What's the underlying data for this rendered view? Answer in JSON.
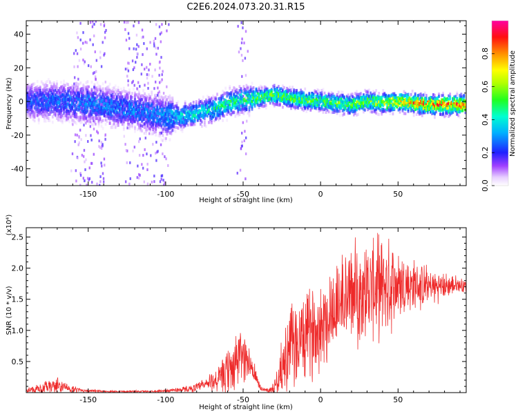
{
  "title": "C2E6.2024.073.20.31.R15",
  "colors": {
    "snr_line": "#ee2a2a",
    "frame": "#000000",
    "background": "#ffffff"
  },
  "chart_data": [
    {
      "type": "heatmap",
      "name": "spectrogram",
      "xlabel": "Height of straight line (km)",
      "ylabel": "Frequency (Hz)",
      "xlim": [
        -190,
        94
      ],
      "ylim": [
        -50,
        48
      ],
      "xticks": [
        -150,
        -100,
        -50,
        0,
        50
      ],
      "yticks": [
        -40,
        -20,
        0,
        20,
        40
      ],
      "xtick_labels": [
        "-150",
        "-100",
        "-50",
        "0",
        "50"
      ],
      "ytick_labels": [
        "-40",
        "-20",
        "0",
        "20",
        "40"
      ],
      "colorbar": {
        "label": "Normalized spectral amplitude",
        "range": [
          0.0,
          1.0
        ],
        "ticks": [
          0.0,
          0.2,
          0.4,
          0.6,
          0.8
        ],
        "tick_labels": [
          "0.0",
          "0.2",
          "0.4",
          "0.6",
          "0.8"
        ],
        "colormap": "rainbow (white-purple-blue-cyan-green-yellow-red-magenta)"
      },
      "ridge_frequency": {
        "x": [
          -190,
          -170,
          -150,
          -130,
          -115,
          -100,
          -90,
          -80,
          -70,
          -60,
          -50,
          -40,
          -30,
          -20,
          -10,
          0,
          10,
          20,
          30,
          40,
          50,
          60,
          70,
          80,
          94
        ],
        "y": [
          0,
          0,
          -1,
          -4,
          -6,
          -9,
          -9,
          -7,
          -5,
          -1,
          1,
          2,
          4,
          2,
          1,
          0,
          -1,
          -2,
          0,
          -1,
          0,
          -1,
          -2,
          -2,
          -2
        ]
      },
      "peak_amplitude": {
        "x": [
          -190,
          -150,
          -110,
          -90,
          -70,
          -50,
          -30,
          0,
          30,
          60,
          94
        ],
        "y": [
          0.25,
          0.3,
          0.3,
          0.4,
          0.45,
          0.5,
          0.55,
          0.55,
          0.6,
          0.8,
          0.85
        ]
      },
      "grid": false
    },
    {
      "type": "line",
      "name": "snr",
      "xlabel": "Height of straight line (km)",
      "ylabel": "SNR (10 * v/v)",
      "y_multiplier": "(x10⁴)",
      "xlim": [
        -190,
        94
      ],
      "ylim": [
        0,
        2.65
      ],
      "xticks": [
        -150,
        -100,
        -50,
        0,
        50
      ],
      "yticks": [
        0.5,
        1.0,
        1.5,
        2.0,
        2.5
      ],
      "xtick_labels": [
        "-150",
        "-100",
        "-50",
        "0",
        "50"
      ],
      "ytick_labels": [
        "0.5",
        "1.0",
        "1.5",
        "2.0",
        "2.5"
      ],
      "series": [
        {
          "color": "#ee2a2a",
          "x": [
            -190,
            -180,
            -175,
            -170,
            -165,
            -160,
            -150,
            -140,
            -130,
            -120,
            -110,
            -100,
            -95,
            -90,
            -85,
            -80,
            -75,
            -70,
            -65,
            -60,
            -57,
            -55,
            -53,
            -50,
            -48,
            -45,
            -42,
            -40,
            -38,
            -35,
            -32,
            -30,
            -28,
            -25,
            -22,
            -20,
            -17,
            -15,
            -12,
            -10,
            -7,
            -5,
            -2,
            0,
            3,
            5,
            8,
            10,
            12,
            15,
            18,
            20,
            22,
            25,
            28,
            30,
            33,
            35,
            38,
            40,
            42,
            45,
            48,
            50,
            55,
            60,
            65,
            70,
            75,
            80,
            85,
            90,
            94
          ],
          "mean": [
            0.04,
            0.06,
            0.09,
            0.12,
            0.08,
            0.05,
            0.03,
            0.02,
            0.02,
            0.02,
            0.02,
            0.03,
            0.04,
            0.05,
            0.06,
            0.08,
            0.12,
            0.18,
            0.22,
            0.3,
            0.4,
            0.5,
            0.55,
            0.6,
            0.55,
            0.45,
            0.25,
            0.12,
            0.06,
            0.04,
            0.05,
            0.08,
            0.2,
            0.4,
            0.55,
            0.7,
            0.75,
            0.8,
            0.85,
            0.9,
            0.95,
            1.0,
            1.05,
            1.1,
            1.2,
            1.25,
            1.35,
            1.4,
            1.45,
            1.5,
            1.55,
            1.58,
            1.6,
            1.62,
            1.65,
            1.65,
            1.67,
            1.68,
            1.7,
            1.7,
            1.72,
            1.72,
            1.73,
            1.73,
            1.72,
            1.72,
            1.71,
            1.7,
            1.7,
            1.71,
            1.72,
            1.73,
            1.72
          ],
          "amp": [
            0.06,
            0.1,
            0.14,
            0.16,
            0.1,
            0.06,
            0.03,
            0.02,
            0.02,
            0.02,
            0.02,
            0.03,
            0.04,
            0.05,
            0.06,
            0.08,
            0.14,
            0.2,
            0.28,
            0.45,
            0.55,
            0.6,
            0.55,
            0.5,
            0.4,
            0.3,
            0.2,
            0.1,
            0.05,
            0.04,
            0.06,
            0.12,
            0.25,
            0.5,
            0.7,
            0.85,
            0.85,
            0.8,
            0.8,
            0.8,
            0.85,
            0.85,
            0.85,
            0.85,
            0.9,
            0.85,
            0.9,
            0.9,
            0.9,
            0.95,
            0.95,
            0.95,
            0.95,
            0.95,
            0.95,
            0.95,
            0.95,
            0.95,
            0.95,
            0.95,
            0.9,
            0.85,
            0.8,
            0.75,
            0.6,
            0.5,
            0.45,
            0.35,
            0.3,
            0.25,
            0.2,
            0.15,
            0.12
          ]
        }
      ],
      "grid": false
    }
  ]
}
